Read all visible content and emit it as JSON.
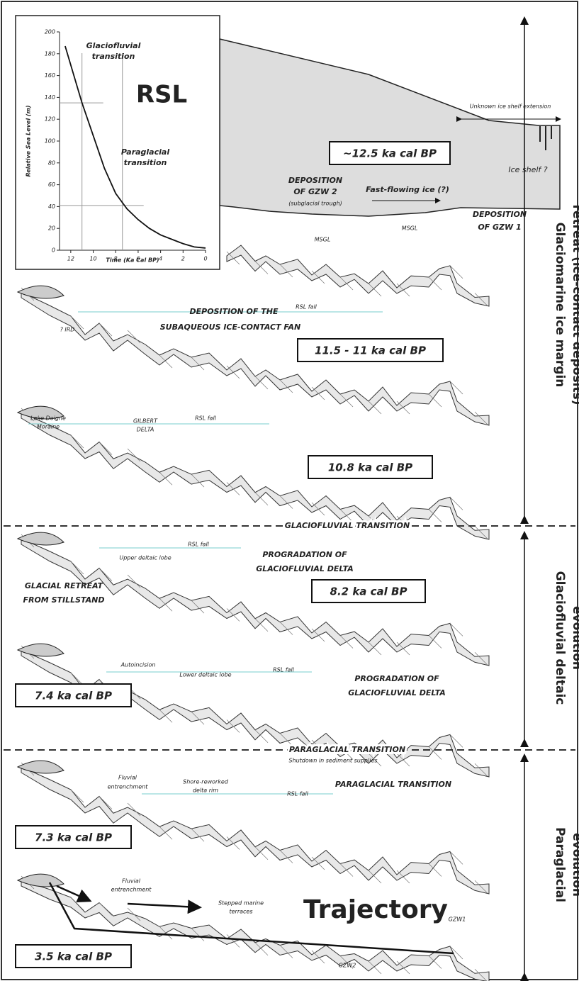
{
  "chart_data": {
    "type": "line",
    "title": "RSL",
    "x_label": "Time (Ka Cal BP)",
    "y_label": "Relative Sea Level (m)",
    "x": [
      12.5,
      11,
      10,
      9,
      8,
      7,
      6,
      5,
      4,
      3,
      2,
      1,
      0
    ],
    "values": [
      187,
      135,
      105,
      75,
      52,
      38,
      28,
      20,
      14,
      10,
      6,
      3,
      2
    ],
    "xlim": [
      13,
      0
    ],
    "ylim": [
      0,
      200
    ],
    "xticks": [
      12,
      10,
      8,
      6,
      4,
      2,
      0
    ],
    "yticks": [
      0,
      20,
      40,
      60,
      80,
      100,
      120,
      140,
      160,
      180,
      200
    ],
    "annotations": [
      "Glaciofluvial",
      "transition",
      "Paraglacial",
      "transition"
    ],
    "guides": [
      {
        "x": 11,
        "y": 135
      },
      {
        "x": 7.4,
        "y": 41
      }
    ]
  },
  "panels": [
    {
      "label": "~12.5 ka cal BP",
      "notes": [
        "Unknown ice shelf extension",
        "Ice shelf ?",
        "DEPOSITION",
        "OF GZW 2",
        "(subglacial trough)",
        "Fast-flowing ice (?)",
        "DEPOSITION",
        "OF GZW 1",
        "MSGL",
        "MSGL"
      ]
    },
    {
      "label": "11.5 - 11 ka cal BP",
      "notes": [
        "DEPOSITION OF THE",
        "SUBAQUEOUS ICE-CONTACT FAN",
        "RSL fall",
        "? IRD"
      ]
    },
    {
      "label": "10.8 ka cal BP",
      "notes": [
        "Lake Doigne",
        "Moraine",
        "GILBERT",
        "DELTA",
        "RSL fall"
      ]
    },
    {
      "label": "8.2 ka cal BP",
      "notes": [
        "RSL fall",
        "Upper deltaic lobe",
        "PROGRADATION OF",
        "GLACIOFLUVIAL DELTA",
        "GLACIAL RETREAT",
        "FROM STILLSTAND"
      ]
    },
    {
      "label": "7.4 ka cal BP",
      "notes": [
        "Autoincision",
        "Lower deltaic lobe",
        "RSL fall",
        "PROGRADATION OF",
        "GLACIOFLUVIAL DELTA"
      ]
    },
    {
      "label": "7.3 ka cal BP",
      "notes": [
        "Fluvial",
        "entrenchment",
        "Shore-reworked",
        "delta rim",
        "RSL fall",
        "PARAGLACIAL TRANSITION"
      ]
    },
    {
      "label": "3.5 ka cal BP",
      "notes": [
        "Fluvial",
        "entrenchment",
        "Stepped marine",
        "terraces",
        "Trajectory",
        "GZW1",
        "GZW2"
      ]
    }
  ],
  "dividers": [
    "GLACIOFLUVIAL TRANSITION",
    "PARAGLACIAL TRANSITION",
    "Shutdown in sediment supplies"
  ],
  "phases": [
    [
      "Glaciomarine ice margin",
      "retreat (ice-contact deposits)"
    ],
    [
      "Glaciofluvial deltaic",
      "evolution"
    ],
    [
      "Paraglacial",
      "evolution"
    ]
  ]
}
